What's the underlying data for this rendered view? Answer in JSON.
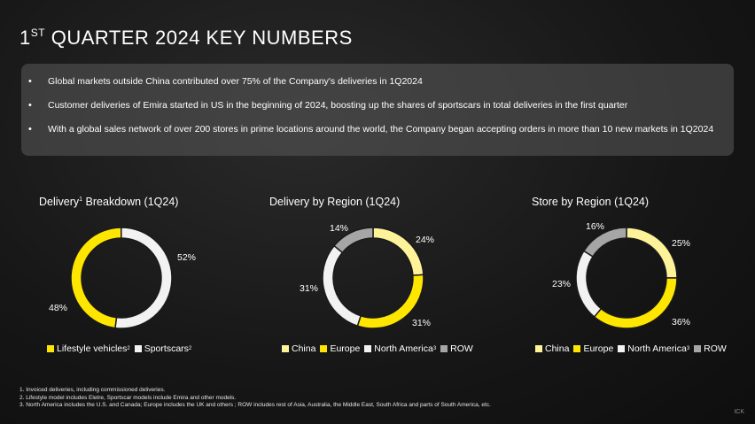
{
  "title": {
    "prefix": "1",
    "superscript": "ST",
    "rest": " QUARTER 2024 KEY NUMBERS"
  },
  "bullets": [
    "Global markets outside China contributed over 75% of the Company's deliveries in 1Q2024",
    "Customer deliveries of Emira started in US in the beginning of 2024, boosting up the shares of sportscars in total deliveries in the first quarter",
    "With a global sales network of over 200 stores in prime locations around the world, the Company began accepting orders in more than 10 new markets in 1Q2024"
  ],
  "colors": {
    "yellow": "#ffe600",
    "light_yellow": "#fff39a",
    "white": "#f2f2f2",
    "gray": "#a6a6a6"
  },
  "chart_data": [
    {
      "type": "pie",
      "title": "Delivery Breakdown (1Q24)",
      "title_main": "Delivery",
      "title_sup": "1",
      "title_rest": " Breakdown (1Q24)",
      "categories": [
        "Lifestyle vehicles",
        "Sportscars"
      ],
      "values": [
        48,
        52
      ],
      "labels": [
        "48%",
        "52%"
      ],
      "legend_sups": [
        "2",
        "2"
      ]
    },
    {
      "type": "pie",
      "title": "Delivery by Region (1Q24)",
      "categories": [
        "China",
        "Europe",
        "North America",
        "ROW"
      ],
      "values": [
        24,
        31,
        31,
        14
      ],
      "labels": [
        "24%",
        "31%",
        "31%",
        "14%"
      ],
      "legend_sups": [
        "",
        "",
        "3",
        ""
      ]
    },
    {
      "type": "pie",
      "title": "Store by Region (1Q24)",
      "categories": [
        "China",
        "Europe",
        "North America",
        "ROW"
      ],
      "values": [
        25,
        36,
        23,
        16
      ],
      "labels": [
        "25%",
        "36%",
        "23%",
        "16%"
      ],
      "legend_sups": [
        "",
        "",
        "3",
        ""
      ]
    }
  ],
  "footnotes": [
    "1. Invoiced deliveries, including commissioned deliveries.",
    "2. Lifestyle model includes Eletre, Sportscar models include Emira and other models.",
    "3. North America includes the U.S. and Canada; Europe includes the UK and others ; ROW includes rest of Asia, Australia, the Middle East, South Africa and parts of South America, etc."
  ],
  "logo_text": "ICK"
}
